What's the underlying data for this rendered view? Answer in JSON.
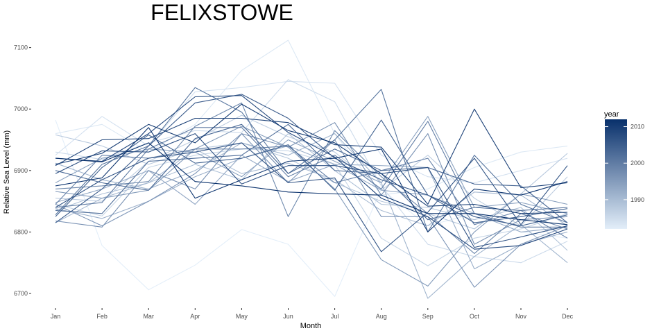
{
  "chart_data": {
    "type": "line",
    "title": "FELIXSTOWE",
    "xlabel": "Month",
    "ylabel": "Relative Sea Level (mm)",
    "categories": [
      "Jan",
      "Feb",
      "Mar",
      "Apr",
      "May",
      "Jun",
      "Jul",
      "Aug",
      "Sep",
      "Oct",
      "Nov",
      "Dec"
    ],
    "y_ticks": [
      6700,
      6800,
      6900,
      7000,
      7100
    ],
    "ylim": [
      6670,
      7115
    ],
    "grid": false,
    "legend": {
      "title": "year",
      "placement": "right",
      "labels": [
        "2010",
        "2000",
        "1990"
      ],
      "label_values": [
        2010,
        2000,
        1990
      ],
      "range": [
        1982,
        2012
      ],
      "color_low": "#e3eef9",
      "color_high": "#08306b"
    },
    "series": [
      {
        "year": 1982,
        "values": [
          6982,
          6778,
          6706,
          6746,
          6804,
          6780,
          6695,
          6870,
          6810,
          6830,
          6800,
          6790
        ]
      },
      {
        "year": 1983,
        "values": [
          6960,
          6975,
          6930,
          6975,
          7063,
          7112,
          6960,
          6860,
          6870,
          6905,
          6930,
          6940
        ]
      },
      {
        "year": 1984,
        "values": [
          6925,
          6988,
          6940,
          7028,
          7035,
          7045,
          7042,
          6925,
          6890,
          6880,
          6900,
          6920
        ]
      },
      {
        "year": 1985,
        "values": [
          6930,
          6918,
          6945,
          6965,
          6962,
          7048,
          7012,
          6875,
          6780,
          6760,
          6750,
          6785
        ]
      },
      {
        "year": 1986,
        "values": [
          6845,
          6826,
          6905,
          6925,
          6935,
          6932,
          6910,
          6790,
          6745,
          6790,
          6805,
          6830
        ]
      },
      {
        "year": 1987,
        "values": [
          6855,
          6850,
          6915,
          6950,
          6990,
          6955,
          6930,
          6868,
          6925,
          6855,
          6810,
          6890
        ]
      },
      {
        "year": 1988,
        "values": [
          6958,
          6940,
          6910,
          6935,
          6945,
          6920,
          6880,
          6850,
          6830,
          6805,
          6862,
          6928
        ]
      },
      {
        "year": 1989,
        "values": [
          6835,
          6862,
          6880,
          6910,
          6885,
          6960,
          6900,
          6845,
          6840,
          6820,
          6840,
          6770
        ]
      },
      {
        "year": 1990,
        "values": [
          6815,
          6855,
          6880,
          6935,
          6895,
          6912,
          6885,
          6835,
          6810,
          6865,
          6860,
          6810
        ]
      },
      {
        "year": 1991,
        "values": [
          6912,
          6885,
          6870,
          6900,
          6945,
          6925,
          6960,
          6880,
          6692,
          6760,
          6812,
          6750
        ]
      },
      {
        "year": 1992,
        "values": [
          6838,
          6822,
          6850,
          6890,
          6920,
          6940,
          6910,
          6908,
          6905,
          6740,
          6780,
          6800
        ]
      },
      {
        "year": 1993,
        "values": [
          6848,
          6870,
          6900,
          6845,
          6925,
          6882,
          6910,
          6868,
          6860,
          6830,
          6800,
          6808
        ]
      },
      {
        "year": 1994,
        "values": [
          6880,
          6920,
          6935,
          6930,
          6890,
          6950,
          6915,
          6880,
          6988,
          6840,
          6848,
          6830
        ]
      },
      {
        "year": 1995,
        "values": [
          6866,
          6855,
          6868,
          6935,
          6972,
          6938,
          6870,
          6755,
          6712,
          6800,
          6862,
          6845
        ]
      },
      {
        "year": 1996,
        "values": [
          6845,
          6810,
          6850,
          6895,
          6960,
          6880,
          6950,
          6825,
          6825,
          6710,
          6780,
          6810
        ]
      },
      {
        "year": 1997,
        "values": [
          6818,
          6808,
          6900,
          6870,
          6960,
          6938,
          6978,
          6860,
          6960,
          6780,
          6820,
          6825
        ]
      },
      {
        "year": 1998,
        "values": [
          6870,
          6875,
          6882,
          6972,
          7010,
          6825,
          6965,
          6890,
          6830,
          6765,
          6830,
          6805
        ]
      },
      {
        "year": 1999,
        "values": [
          6845,
          6925,
          6920,
          6935,
          6935,
          6940,
          6880,
          6900,
          6920,
          6812,
          6835,
          6790
        ]
      },
      {
        "year": 2000,
        "values": [
          6840,
          6848,
          6935,
          6970,
          6970,
          6890,
          6925,
          6870,
          6980,
          6830,
          6808,
          6808
        ]
      },
      {
        "year": 2001,
        "values": [
          6828,
          6910,
          6940,
          7035,
          6995,
          6895,
          6950,
          7032,
          6800,
          6925,
          6845,
          6815
        ]
      },
      {
        "year": 2002,
        "values": [
          6835,
          6830,
          6915,
          6920,
          6925,
          6975,
          6900,
          6895,
          6820,
          6840,
          6835,
          6840
        ]
      },
      {
        "year": 2003,
        "values": [
          6900,
          6880,
          6868,
          6952,
          6975,
          6895,
          6935,
          6900,
          6905,
          6878,
          6875,
          6815
        ]
      },
      {
        "year": 2004,
        "values": [
          6825,
          6905,
          6958,
          6912,
          6920,
          6942,
          6868,
          6982,
          6860,
          6815,
          6825,
          6838
        ]
      },
      {
        "year": 2005,
        "values": [
          6815,
          6870,
          6940,
          7010,
          7024,
          6985,
          6920,
          6885,
          6860,
          6825,
          6810,
          6828
        ]
      },
      {
        "year": 2006,
        "values": [
          6840,
          6885,
          6920,
          6930,
          6945,
          6880,
          6888,
          6768,
          6832,
          6920,
          6812,
          6908
        ]
      },
      {
        "year": 2007,
        "values": [
          6895,
          6932,
          6930,
          6960,
          6878,
          6908,
          6908,
          6895,
          6905,
          6775,
          6792,
          6810
        ]
      },
      {
        "year": 2008,
        "values": [
          6920,
          6915,
          6960,
          7020,
          7022,
          6962,
          6922,
          6855,
          6825,
          6772,
          6778,
          6805
        ]
      },
      {
        "year": 2009,
        "values": [
          6908,
          6950,
          6952,
          6985,
          6985,
          6978,
          6942,
          6938,
          6845,
          7000,
          6872,
          6880
        ]
      },
      {
        "year": 2010,
        "values": [
          6910,
          6928,
          6975,
          6945,
          7008,
          6965,
          6945,
          6895,
          6842,
          6845,
          6830,
          6832
        ]
      },
      {
        "year": 2011,
        "values": [
          6875,
          6888,
          6970,
          6855,
          6885,
          6915,
          6920,
          6935,
          6800,
          6870,
          6860,
          6882
        ]
      },
      {
        "year": 2012,
        "values": [
          6920,
          6914,
          6945,
          6882,
          6875,
          6865,
          6862,
          6860,
          6830,
          6830,
          6820,
          6812
        ]
      }
    ]
  }
}
